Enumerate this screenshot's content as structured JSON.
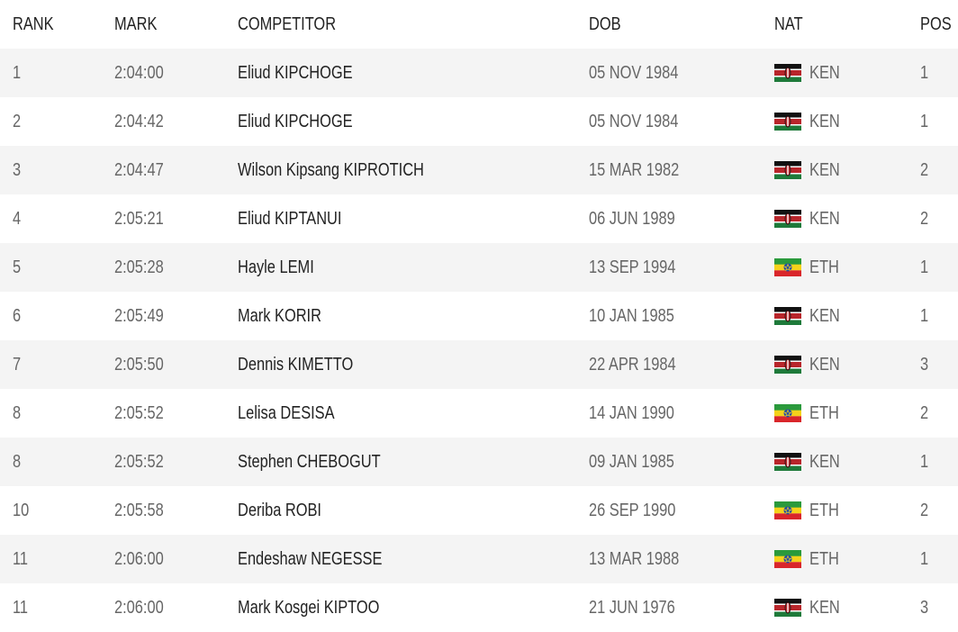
{
  "table": {
    "header": [
      "RANK",
      "MARK",
      "COMPETITOR",
      "DOB",
      "NAT",
      "POS"
    ],
    "rows": [
      [
        "1",
        "2:04:00",
        "Eliud KIPCHOGE",
        "05 NOV 1984",
        "KEN",
        "1"
      ],
      [
        "2",
        "2:04:42",
        "Eliud KIPCHOGE",
        "05 NOV 1984",
        "KEN",
        "1"
      ],
      [
        "3",
        "2:04:47",
        "Wilson Kipsang KIPROTICH",
        "15 MAR 1982",
        "KEN",
        "2"
      ],
      [
        "4",
        "2:05:21",
        "Eliud KIPTANUI",
        "06 JUN 1989",
        "KEN",
        "2"
      ],
      [
        "5",
        "2:05:28",
        "Hayle LEMI",
        "13 SEP 1994",
        "ETH",
        "1"
      ],
      [
        "6",
        "2:05:49",
        "Mark KORIR",
        "10 JAN 1985",
        "KEN",
        "1"
      ],
      [
        "7",
        "2:05:50",
        "Dennis KIMETTO",
        "22 APR 1984",
        "KEN",
        "3"
      ],
      [
        "8",
        "2:05:52",
        "Lelisa DESISA",
        "14 JAN 1990",
        "ETH",
        "2"
      ],
      [
        "8",
        "2:05:52",
        "Stephen CHEBOGUT",
        "09 JAN 1985",
        "KEN",
        "1"
      ],
      [
        "10",
        "2:05:58",
        "Deriba ROBI",
        "26 SEP 1990",
        "ETH",
        "2"
      ],
      [
        "11",
        "2:06:00",
        "Endeshaw NEGESSE",
        "13 MAR 1988",
        "ETH",
        "1"
      ],
      [
        "11",
        "2:06:00",
        "Mark Kosgei KIPTOO",
        "21 JUN 1976",
        "KEN",
        "3"
      ]
    ]
  }
}
